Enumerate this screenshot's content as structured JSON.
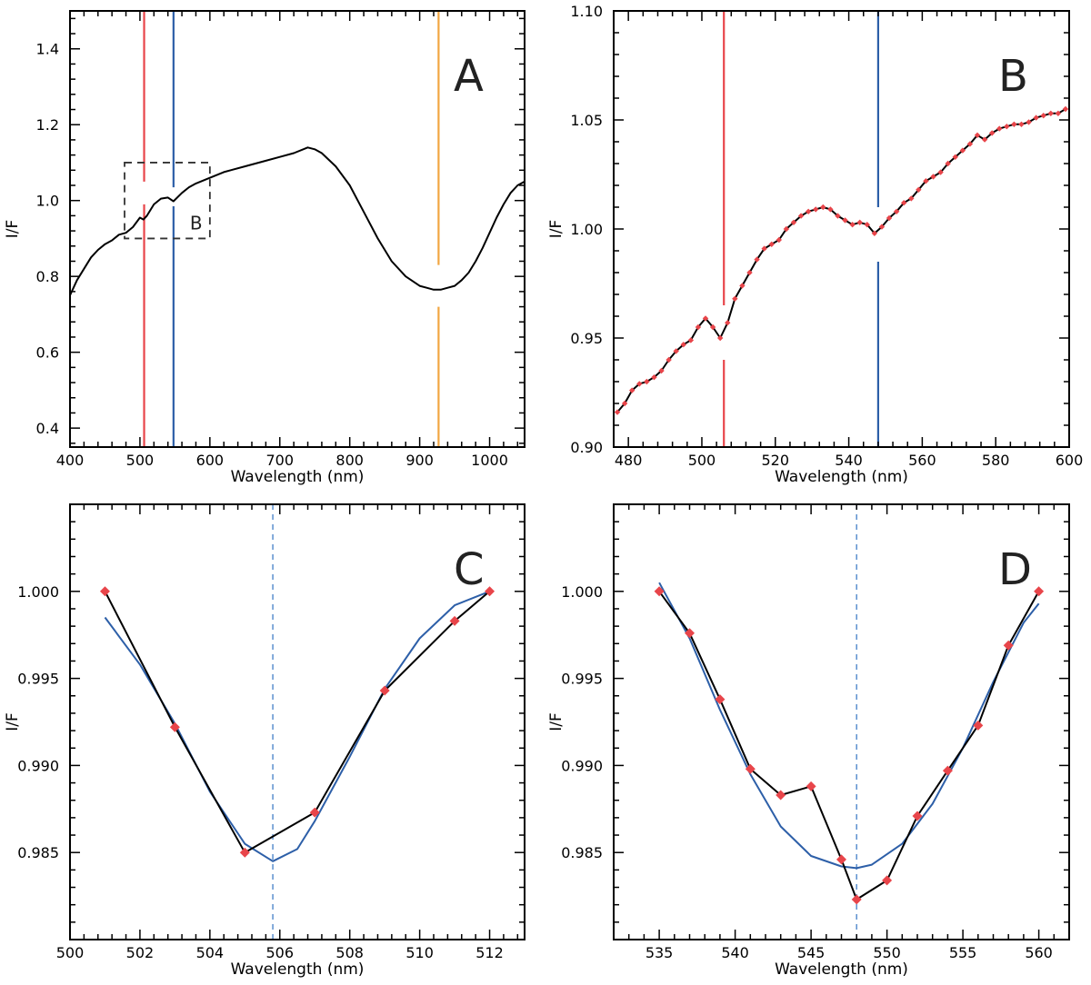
{
  "chart_data": [
    {
      "panel": "A",
      "type": "line",
      "xlabel": "Wavelength (nm)",
      "ylabel": "I/F",
      "xlim": [
        400,
        1050
      ],
      "ylim": [
        0.35,
        1.5
      ],
      "xticks": [
        400,
        500,
        600,
        700,
        800,
        900,
        1000
      ],
      "yticks": [
        0.4,
        0.6,
        0.8,
        1.0,
        1.2,
        1.4
      ],
      "ytick_decimals": 1,
      "grid": false,
      "annotation_box": {
        "x": [
          478,
          600
        ],
        "y": [
          0.9,
          1.1
        ],
        "label": "B"
      },
      "vlines": [
        {
          "x": 506,
          "color": "#e8454a",
          "gap": [
            0.99,
            1.05
          ]
        },
        {
          "x": 548,
          "color": "#2d5fa8",
          "gap": [
            0.985,
            1.035
          ]
        },
        {
          "x": 927,
          "color": "#f2a642",
          "gap": [
            0.72,
            0.83
          ]
        }
      ],
      "series": [
        {
          "color": "#000000",
          "markers": false,
          "x": [
            400,
            410,
            420,
            430,
            440,
            450,
            460,
            470,
            480,
            490,
            500,
            505,
            510,
            520,
            530,
            540,
            548,
            560,
            570,
            580,
            600,
            620,
            650,
            680,
            700,
            720,
            740,
            750,
            760,
            780,
            800,
            820,
            840,
            860,
            880,
            900,
            910,
            920,
            930,
            940,
            950,
            960,
            970,
            980,
            990,
            1000,
            1010,
            1020,
            1030,
            1040,
            1050
          ],
          "y": [
            0.75,
            0.79,
            0.82,
            0.85,
            0.87,
            0.885,
            0.895,
            0.91,
            0.915,
            0.93,
            0.955,
            0.95,
            0.96,
            0.99,
            1.005,
            1.008,
            0.998,
            1.02,
            1.035,
            1.045,
            1.06,
            1.075,
            1.09,
            1.105,
            1.115,
            1.125,
            1.14,
            1.135,
            1.125,
            1.09,
            1.04,
            0.97,
            0.9,
            0.84,
            0.8,
            0.775,
            0.77,
            0.765,
            0.765,
            0.77,
            0.775,
            0.79,
            0.81,
            0.84,
            0.875,
            0.915,
            0.955,
            0.99,
            1.02,
            1.04,
            1.05
          ]
        }
      ]
    },
    {
      "panel": "B",
      "type": "line",
      "xlabel": "Wavelength (nm)",
      "ylabel": "I/F",
      "xlim": [
        476,
        600
      ],
      "ylim": [
        0.9,
        1.1
      ],
      "xticks": [
        480,
        500,
        520,
        540,
        560,
        580,
        600
      ],
      "yticks": [
        0.9,
        0.95,
        1.0,
        1.05,
        1.1
      ],
      "ytick_decimals": 2,
      "grid": false,
      "vlines": [
        {
          "x": 506,
          "color": "#e8454a",
          "gap": [
            0.94,
            0.965
          ]
        },
        {
          "x": 548,
          "color": "#2d5fa8",
          "gap": [
            0.985,
            1.01
          ]
        }
      ],
      "series": [
        {
          "color": "#000000",
          "markers": true,
          "marker_color": "#e8454a",
          "x": [
            477,
            479,
            481,
            483,
            485,
            487,
            489,
            491,
            493,
            495,
            497,
            499,
            501,
            503,
            505,
            507,
            509,
            511,
            513,
            515,
            517,
            519,
            521,
            523,
            525,
            527,
            529,
            531,
            533,
            535,
            537,
            539,
            541,
            543,
            545,
            547,
            549,
            551,
            553,
            555,
            557,
            559,
            561,
            563,
            565,
            567,
            569,
            571,
            573,
            575,
            577,
            579,
            581,
            583,
            585,
            587,
            589,
            591,
            593,
            595,
            597,
            599
          ],
          "y": [
            0.916,
            0.92,
            0.926,
            0.929,
            0.93,
            0.932,
            0.935,
            0.94,
            0.944,
            0.947,
            0.949,
            0.955,
            0.959,
            0.955,
            0.95,
            0.957,
            0.968,
            0.974,
            0.98,
            0.986,
            0.991,
            0.993,
            0.995,
            1.0,
            1.003,
            1.006,
            1.008,
            1.009,
            1.01,
            1.009,
            1.006,
            1.004,
            1.002,
            1.003,
            1.002,
            0.998,
            1.001,
            1.005,
            1.008,
            1.012,
            1.014,
            1.018,
            1.022,
            1.024,
            1.026,
            1.03,
            1.033,
            1.036,
            1.039,
            1.043,
            1.041,
            1.044,
            1.046,
            1.047,
            1.048,
            1.048,
            1.049,
            1.051,
            1.052,
            1.053,
            1.053,
            1.055
          ]
        }
      ]
    },
    {
      "panel": "C",
      "type": "line",
      "xlabel": "Wavelength (nm)",
      "ylabel": "I/F",
      "xlim": [
        500,
        513
      ],
      "ylim": [
        0.98,
        1.005
      ],
      "xticks": [
        500,
        502,
        504,
        506,
        508,
        510,
        512
      ],
      "yticks": [
        0.985,
        0.99,
        0.995,
        1.0
      ],
      "ytick_decimals": 3,
      "grid": false,
      "center_line": {
        "x": 505.8,
        "color": "#5b8fcf"
      },
      "fit": {
        "color": "#2d5fa8",
        "x": [
          501,
          502,
          503,
          504,
          505,
          505.8,
          506.5,
          507,
          508,
          509,
          510,
          511,
          512
        ],
        "y": [
          0.9985,
          0.9958,
          0.9924,
          0.9885,
          0.9855,
          0.9845,
          0.9852,
          0.9868,
          0.9905,
          0.9944,
          0.9973,
          0.9992,
          1.0
        ]
      },
      "series": [
        {
          "color": "#000000",
          "markers": true,
          "marker_color": "#e8454a",
          "x": [
            501,
            503,
            505,
            507,
            509,
            511,
            512
          ],
          "y": [
            1.0,
            0.9922,
            0.985,
            0.9873,
            0.9943,
            0.9983,
            1.0
          ]
        }
      ]
    },
    {
      "panel": "D",
      "type": "line",
      "xlabel": "Wavelength (nm)",
      "ylabel": "I/F",
      "xlim": [
        532,
        562
      ],
      "ylim": [
        0.98,
        1.005
      ],
      "xticks": [
        535,
        540,
        545,
        550,
        555,
        560
      ],
      "yticks": [
        0.985,
        0.99,
        0.995,
        1.0
      ],
      "ytick_decimals": 3,
      "grid": false,
      "center_line": {
        "x": 548,
        "color": "#5b8fcf"
      },
      "fit": {
        "color": "#2d5fa8",
        "x": [
          535,
          537,
          539,
          541,
          543,
          545,
          547,
          548,
          549,
          551,
          553,
          555,
          557,
          559,
          560
        ],
        "y": [
          1.0005,
          0.9973,
          0.9932,
          0.9895,
          0.9865,
          0.9848,
          0.9842,
          0.9841,
          0.9843,
          0.9855,
          0.9878,
          0.991,
          0.9948,
          0.9982,
          0.9993
        ]
      },
      "series": [
        {
          "color": "#000000",
          "markers": true,
          "marker_color": "#e8454a",
          "x": [
            535,
            537,
            539,
            541,
            543,
            545,
            547,
            548,
            550,
            552,
            554,
            556,
            558,
            560
          ],
          "y": [
            1.0,
            0.9976,
            0.9938,
            0.9898,
            0.9883,
            0.9888,
            0.9846,
            0.9823,
            0.9834,
            0.9871,
            0.9897,
            0.9923,
            0.9969,
            1.0
          ]
        }
      ]
    }
  ]
}
